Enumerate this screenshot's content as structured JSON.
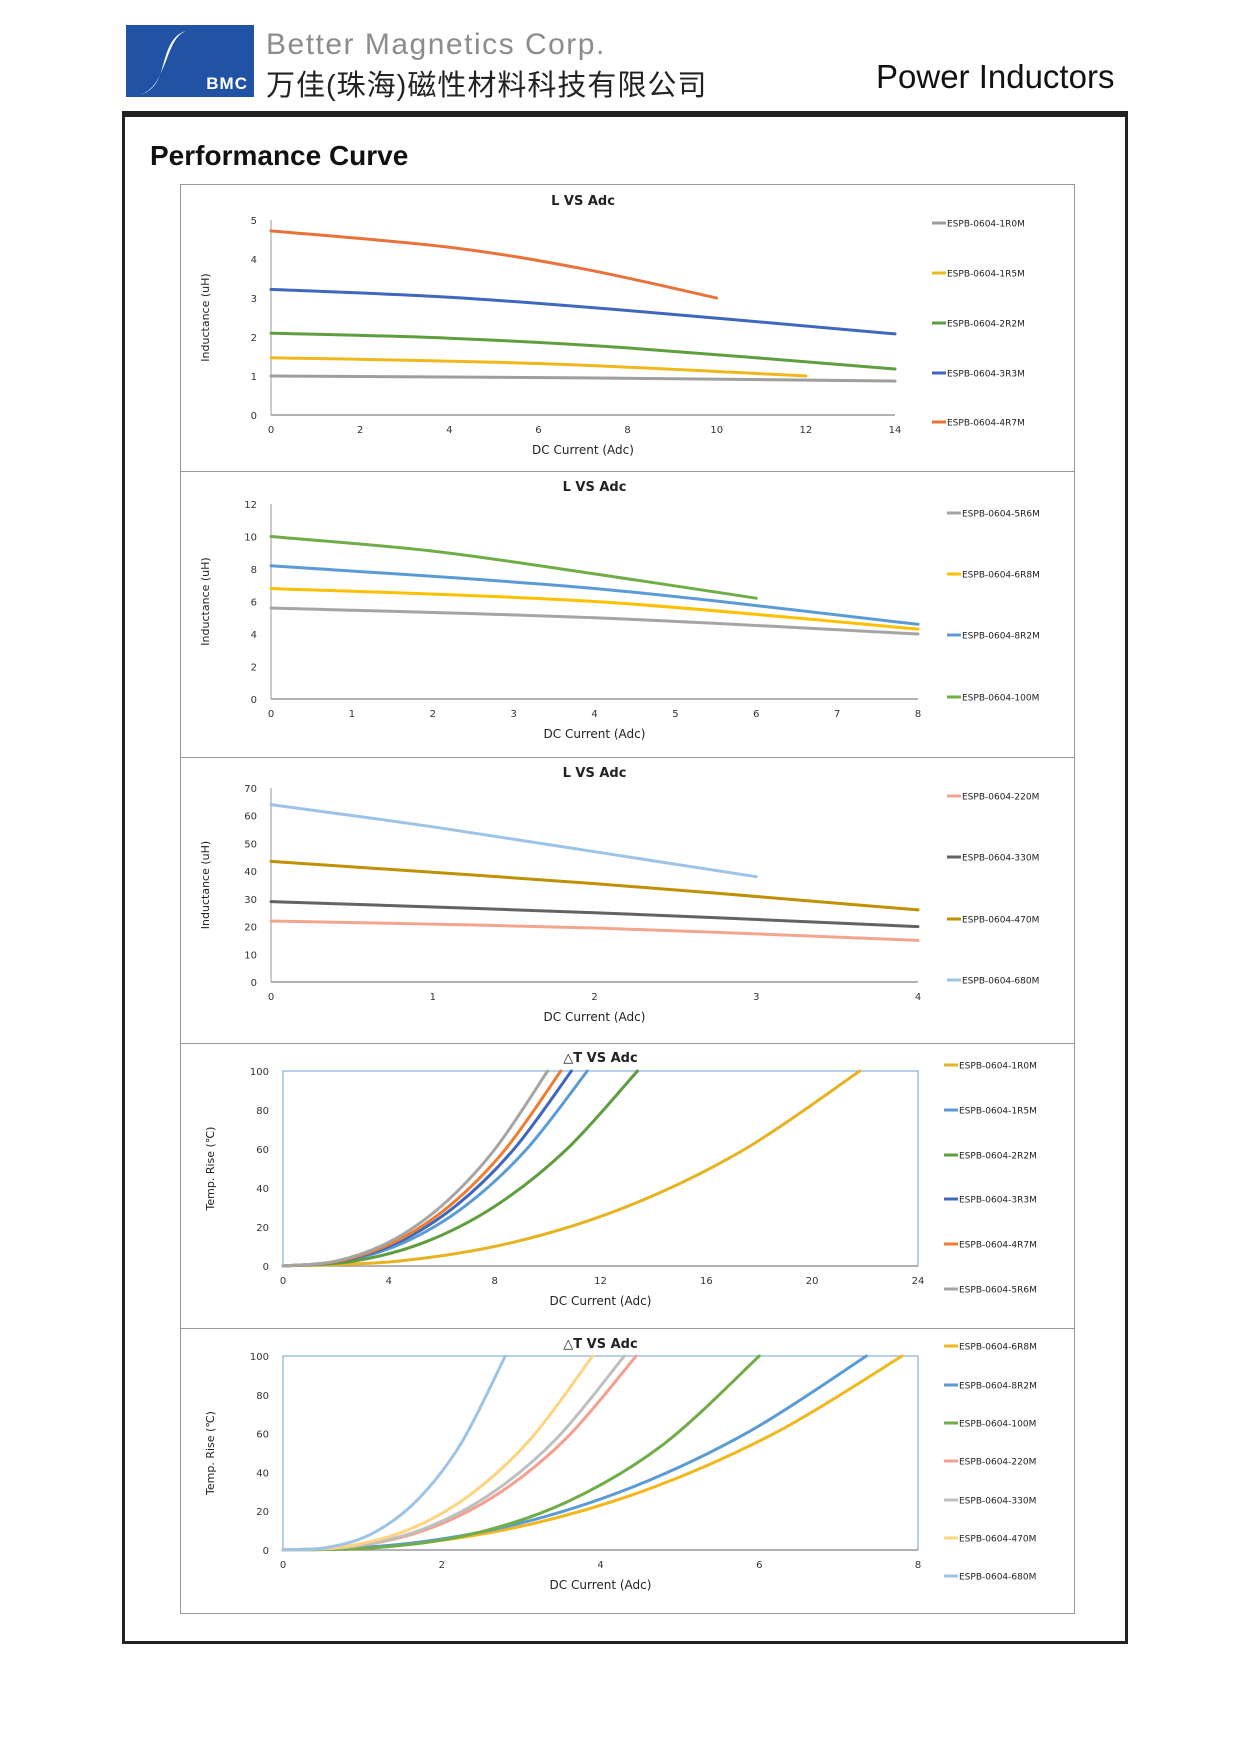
{
  "header": {
    "logo_text": "BMC",
    "company_en": "Better Magnetics Corp.",
    "company_cn": "万佳(珠海)磁性材料科技有限公司",
    "product": "Power Inductors"
  },
  "section_title": "Performance Curve",
  "chart_data": [
    {
      "type": "line",
      "title": "L VS Adc",
      "xlabel": "DC Current (Adc)",
      "ylabel": "Inductance (uH)",
      "xlim": [
        0,
        14
      ],
      "ylim": [
        0,
        5
      ],
      "xticks": [
        0,
        2,
        4,
        6,
        8,
        10,
        12,
        14
      ],
      "yticks": [
        0,
        1,
        2,
        3,
        4,
        5
      ],
      "legend": "right",
      "series": [
        {
          "name": "ESPB-0604-1R0M",
          "color": "#9e9e9e",
          "x": [
            0,
            7,
            14
          ],
          "y": [
            1.0,
            0.95,
            0.87
          ]
        },
        {
          "name": "ESPB-0604-1R5M",
          "color": "#f0b81c",
          "x": [
            0,
            6,
            12
          ],
          "y": [
            1.47,
            1.32,
            1.0
          ]
        },
        {
          "name": "ESPB-0604-2R2M",
          "color": "#5f9e3e",
          "x": [
            0,
            4,
            8,
            14
          ],
          "y": [
            2.1,
            1.97,
            1.72,
            1.18
          ]
        },
        {
          "name": "ESPB-0604-3R3M",
          "color": "#3f67bd",
          "x": [
            0,
            4,
            8,
            14
          ],
          "y": [
            3.22,
            3.02,
            2.68,
            2.08
          ]
        },
        {
          "name": "ESPB-0604-4R7M",
          "color": "#e8733a",
          "x": [
            0,
            4,
            7,
            10
          ],
          "y": [
            4.72,
            4.3,
            3.75,
            3.0
          ]
        }
      ]
    },
    {
      "type": "line",
      "title": "L VS Adc",
      "xlabel": "DC Current (Adc)",
      "ylabel": "Inductance (uH)",
      "xlim": [
        0,
        8
      ],
      "ylim": [
        0,
        12
      ],
      "xticks": [
        0,
        1,
        2,
        3,
        4,
        5,
        6,
        7,
        8
      ],
      "yticks": [
        0,
        2,
        4,
        6,
        8,
        10,
        12
      ],
      "legend": "right",
      "series": [
        {
          "name": "ESPB-0604-5R6M",
          "color": "#a5a5a5",
          "x": [
            0,
            4,
            8
          ],
          "y": [
            5.6,
            5.0,
            4.0
          ]
        },
        {
          "name": "ESPB-0604-6R8M",
          "color": "#ffc000",
          "x": [
            0,
            4,
            8
          ],
          "y": [
            6.8,
            6.0,
            4.3
          ]
        },
        {
          "name": "ESPB-0604-8R2M",
          "color": "#5b9bd5",
          "x": [
            0,
            4,
            8
          ],
          "y": [
            8.2,
            6.8,
            4.6
          ]
        },
        {
          "name": "ESPB-0604-100M",
          "color": "#70ad47",
          "x": [
            0,
            2,
            4,
            6
          ],
          "y": [
            10.0,
            9.1,
            7.7,
            6.2
          ]
        }
      ]
    },
    {
      "type": "line",
      "title": "L VS Adc",
      "xlabel": "DC Current (Adc)",
      "ylabel": "Inductance (uH)",
      "xlim": [
        0,
        4
      ],
      "ylim": [
        0,
        70
      ],
      "xticks": [
        0,
        1,
        2,
        3,
        4
      ],
      "yticks": [
        0,
        10,
        20,
        30,
        40,
        50,
        60,
        70
      ],
      "legend": "right",
      "series": [
        {
          "name": "ESPB-0604-220M",
          "color": "#f4a58f",
          "x": [
            0,
            2,
            4
          ],
          "y": [
            22,
            19.5,
            15
          ]
        },
        {
          "name": "ESPB-0604-330M",
          "color": "#636363",
          "x": [
            0,
            2,
            4
          ],
          "y": [
            29,
            25,
            20
          ]
        },
        {
          "name": "ESPB-0604-470M",
          "color": "#bf9000",
          "x": [
            0,
            2,
            4
          ],
          "y": [
            43.5,
            35.5,
            26
          ]
        },
        {
          "name": "ESPB-0604-680M",
          "color": "#9dc3e6",
          "x": [
            0,
            1,
            2,
            3
          ],
          "y": [
            64,
            56,
            47,
            38
          ]
        }
      ]
    },
    {
      "type": "line",
      "title": "△T VS Adc",
      "xlabel": "DC Current (Adc)",
      "ylabel": "Temp. Rise (℃)",
      "xlim": [
        0,
        24
      ],
      "ylim": [
        0,
        100
      ],
      "xticks": [
        0,
        4,
        8,
        12,
        16,
        20,
        24
      ],
      "yticks": [
        0,
        20,
        40,
        60,
        80,
        100
      ],
      "legend": "right",
      "series": [
        {
          "name": "ESPB-0604-1R0M",
          "color": "#e6b422",
          "x": [
            0,
            4.36,
            8.72,
            13.08,
            17.44,
            21.8
          ],
          "y": [
            0,
            2.5,
            12.2,
            30.9,
            59.8,
            100
          ]
        },
        {
          "name": "ESPB-0604-1R5M",
          "color": "#5b9bd5",
          "x": [
            0,
            2.3,
            4.6,
            6.9,
            9.2,
            11.5
          ],
          "y": [
            0,
            2.5,
            12.2,
            30.9,
            59.8,
            100
          ]
        },
        {
          "name": "ESPB-0604-2R2M",
          "color": "#5f9e3e",
          "x": [
            0,
            2.68,
            5.36,
            8.04,
            10.72,
            13.4
          ],
          "y": [
            0,
            2.5,
            12.2,
            30.9,
            59.8,
            100
          ]
        },
        {
          "name": "ESPB-0604-3R3M",
          "color": "#3f67bd",
          "x": [
            0,
            2.18,
            4.36,
            6.54,
            8.72,
            10.9
          ],
          "y": [
            0,
            2.5,
            12.2,
            30.9,
            59.8,
            100
          ]
        },
        {
          "name": "ESPB-0604-4R7M",
          "color": "#ed7d31",
          "x": [
            0,
            2.1,
            4.2,
            6.3,
            8.4,
            10.5
          ],
          "y": [
            0,
            2.5,
            12.2,
            30.9,
            59.8,
            100
          ]
        },
        {
          "name": "ESPB-0604-5R6M",
          "color": "#a5a5a5",
          "x": [
            0,
            2,
            4,
            6,
            8,
            10
          ],
          "y": [
            0,
            2.5,
            12.2,
            30.9,
            59.8,
            100
          ]
        }
      ]
    },
    {
      "type": "line",
      "title": "△T VS Adc",
      "xlabel": "DC Current (Adc)",
      "ylabel": "Temp. Rise (℃)",
      "xlim": [
        0,
        8
      ],
      "ylim": [
        0,
        100
      ],
      "xticks": [
        0,
        2,
        4,
        6,
        8
      ],
      "yticks": [
        0,
        20,
        40,
        60,
        80,
        100
      ],
      "legend": "right",
      "series": [
        {
          "name": "ESPB-0604-6R8M",
          "color": "#f0b81c",
          "x": [
            0,
            1.56,
            3.12,
            4.68,
            6.24,
            7.8
          ],
          "y": [
            0,
            2.9,
            13.3,
            32.5,
            61.2,
            100
          ]
        },
        {
          "name": "ESPB-0604-8R2M",
          "color": "#5b9bd5",
          "x": [
            0,
            1.47,
            2.94,
            4.41,
            5.88,
            7.35
          ],
          "y": [
            0,
            2.9,
            13.3,
            32.5,
            61.2,
            100
          ]
        },
        {
          "name": "ESPB-0604-100M",
          "color": "#70ad47",
          "x": [
            0,
            1.2,
            2.4,
            3.6,
            4.8,
            6.0
          ],
          "y": [
            0,
            1.3,
            8.4,
            25.2,
            54.7,
            100
          ]
        },
        {
          "name": "ESPB-0604-220M",
          "color": "#f4a090",
          "x": [
            0,
            0.89,
            1.78,
            2.67,
            3.56,
            4.45
          ],
          "y": [
            0,
            1.8,
            10.1,
            27.9,
            57.2,
            100
          ]
        },
        {
          "name": "ESPB-0604-330M",
          "color": "#bfbfbf",
          "x": [
            0,
            0.86,
            1.72,
            2.58,
            3.44,
            4.3
          ],
          "y": [
            0,
            1.8,
            10.1,
            27.9,
            57.2,
            100
          ]
        },
        {
          "name": "ESPB-0604-470M",
          "color": "#ffd37f",
          "x": [
            0,
            0.78,
            1.56,
            2.34,
            3.12,
            3.9
          ],
          "y": [
            0,
            1.8,
            10.1,
            27.9,
            57.2,
            100
          ]
        },
        {
          "name": "ESPB-0604-680M",
          "color": "#9dc3e6",
          "x": [
            0,
            0.56,
            1.12,
            1.68,
            2.24,
            2.8
          ],
          "y": [
            0,
            1.3,
            8.4,
            25.2,
            54.7,
            100
          ]
        }
      ]
    }
  ]
}
